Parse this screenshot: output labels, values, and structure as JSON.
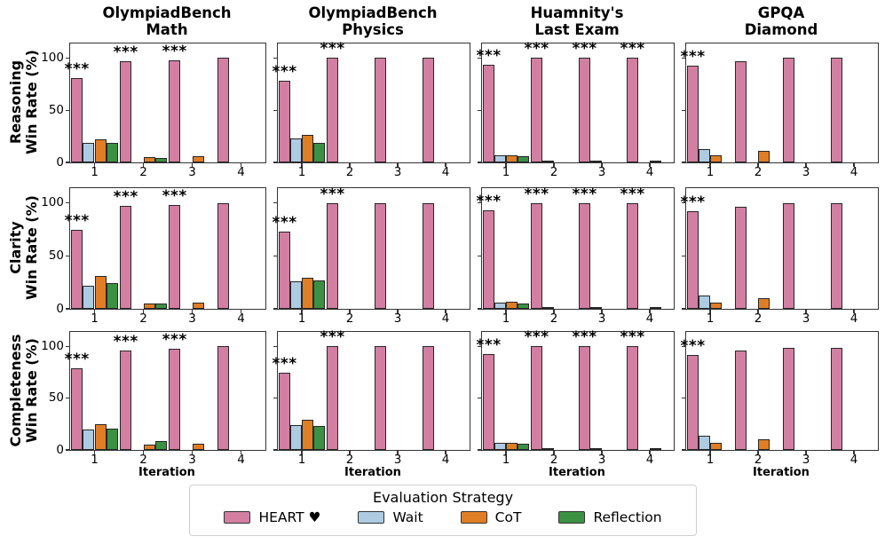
{
  "legend": {
    "title": "Evaluation Strategy",
    "entries": [
      {
        "label": "HEART ♥",
        "color": "#D27FA2"
      },
      {
        "label": "Wait",
        "color": "#AECBE1"
      },
      {
        "label": "CoT",
        "color": "#E07E26"
      },
      {
        "label": "Reflection",
        "color": "#3B9142"
      }
    ]
  },
  "chart_data": {
    "type": "bar",
    "columns": [
      {
        "title": "OlympiadBench\nMath"
      },
      {
        "title": "OlympiadBench\nPhysics"
      },
      {
        "title": "Huamnity's\nLast Exam"
      },
      {
        "title": "GPQA\nDiamond"
      }
    ],
    "rows": [
      {
        "label": "Reasoning\nWin Rate (%)"
      },
      {
        "label": "Clarity\nWin Rate (%)"
      },
      {
        "label": "Completeness\nWin Rate (%)"
      }
    ],
    "x_label": "Iteration",
    "x_ticks": [
      "1",
      "2",
      "3",
      "4"
    ],
    "y_ticks": [
      {
        "value": 0,
        "label": "0"
      },
      {
        "value": 50,
        "label": "50"
      },
      {
        "value": 100,
        "label": "100"
      }
    ],
    "ylim": [
      0,
      114
    ],
    "grid": false,
    "significance_marker": "***",
    "series_keys": [
      "HEART",
      "Wait",
      "CoT",
      "Reflection"
    ],
    "series": [
      {
        "key": "HEART",
        "name": "HEART ♥",
        "color": "#D27FA2"
      },
      {
        "key": "Wait",
        "name": "Wait",
        "color": "#AECBE1"
      },
      {
        "key": "CoT",
        "name": "CoT",
        "color": "#E07E26"
      },
      {
        "key": "Reflection",
        "name": "Reflection",
        "color": "#3B9142"
      }
    ],
    "panels": [
      {
        "row": 0,
        "col": 0,
        "dataset": "OlympiadBench Math",
        "metric": "Reasoning Win Rate (%)",
        "values": {
          "HEART": [
            81,
            97,
            98,
            100
          ],
          "Wait": [
            19,
            0,
            0,
            0
          ],
          "CoT": [
            22,
            5,
            6,
            0
          ],
          "Reflection": [
            19,
            4,
            0,
            0
          ]
        },
        "stars_at_iterations": [
          1,
          2,
          3
        ]
      },
      {
        "row": 0,
        "col": 1,
        "dataset": "OlympiadBench Physics",
        "metric": "Reasoning Win Rate (%)",
        "values": {
          "HEART": [
            78,
            100,
            100,
            100
          ],
          "Wait": [
            23,
            0,
            0,
            0
          ],
          "CoT": [
            26,
            0,
            0,
            0
          ],
          "Reflection": [
            19,
            0,
            0,
            0
          ]
        },
        "stars_at_iterations": [
          1,
          2
        ]
      },
      {
        "row": 0,
        "col": 2,
        "dataset": "Huamnity's Last Exam",
        "metric": "Reasoning Win Rate (%)",
        "values": {
          "HEART": [
            94,
            100,
            100,
            100
          ],
          "Wait": [
            7,
            1,
            2,
            0
          ],
          "CoT": [
            7,
            0,
            0,
            2
          ],
          "Reflection": [
            6,
            0,
            0,
            0
          ]
        },
        "stars_at_iterations": [
          1,
          2,
          3,
          4
        ]
      },
      {
        "row": 0,
        "col": 3,
        "dataset": "GPQA Diamond",
        "metric": "Reasoning Win Rate (%)",
        "values": {
          "HEART": [
            93,
            97,
            100,
            100
          ],
          "Wait": [
            13,
            0,
            0,
            0
          ],
          "CoT": [
            7,
            11,
            0,
            0
          ],
          "Reflection": [
            0,
            0,
            0,
            0
          ]
        },
        "stars_at_iterations": [
          1
        ]
      },
      {
        "row": 1,
        "col": 0,
        "dataset": "OlympiadBench Math",
        "metric": "Clarity Win Rate (%)",
        "values": {
          "HEART": [
            75,
            97,
            98,
            100
          ],
          "Wait": [
            22,
            0,
            0,
            0
          ],
          "CoT": [
            31,
            5,
            6,
            0
          ],
          "Reflection": [
            24,
            5,
            0,
            0
          ]
        },
        "stars_at_iterations": [
          1,
          2,
          3
        ]
      },
      {
        "row": 1,
        "col": 1,
        "dataset": "OlympiadBench Physics",
        "metric": "Clarity Win Rate (%)",
        "values": {
          "HEART": [
            73,
            100,
            100,
            100
          ],
          "Wait": [
            26,
            0,
            0,
            0
          ],
          "CoT": [
            29,
            0,
            0,
            0
          ],
          "Reflection": [
            27,
            0,
            0,
            0
          ]
        },
        "stars_at_iterations": [
          1,
          2
        ]
      },
      {
        "row": 1,
        "col": 2,
        "dataset": "Huamnity's Last Exam",
        "metric": "Clarity Win Rate (%)",
        "values": {
          "HEART": [
            93,
            100,
            100,
            100
          ],
          "Wait": [
            6,
            1,
            2,
            0
          ],
          "CoT": [
            7,
            0,
            0,
            1.5
          ],
          "Reflection": [
            5,
            0,
            0,
            0
          ]
        },
        "stars_at_iterations": [
          1,
          2,
          3,
          4
        ]
      },
      {
        "row": 1,
        "col": 3,
        "dataset": "GPQA Diamond",
        "metric": "Clarity Win Rate (%)",
        "values": {
          "HEART": [
            92,
            96,
            100,
            100
          ],
          "Wait": [
            13,
            0,
            0,
            0
          ],
          "CoT": [
            6,
            10,
            0,
            0
          ],
          "Reflection": [
            0,
            0,
            0,
            0
          ]
        },
        "stars_at_iterations": [
          1
        ]
      },
      {
        "row": 2,
        "col": 0,
        "dataset": "OlympiadBench Math",
        "metric": "Completeness Win Rate (%)",
        "values": {
          "HEART": [
            79,
            96,
            98,
            100
          ],
          "Wait": [
            20,
            0,
            0,
            0
          ],
          "CoT": [
            25,
            5,
            6,
            0
          ],
          "Reflection": [
            21,
            9,
            0,
            0
          ]
        },
        "stars_at_iterations": [
          1,
          2,
          3
        ]
      },
      {
        "row": 2,
        "col": 1,
        "dataset": "OlympiadBench Physics",
        "metric": "Completeness Win Rate (%)",
        "values": {
          "HEART": [
            75,
            100,
            100,
            100
          ],
          "Wait": [
            24,
            0,
            0,
            0
          ],
          "CoT": [
            29,
            0,
            0,
            0
          ],
          "Reflection": [
            23,
            0,
            0,
            0
          ]
        },
        "stars_at_iterations": [
          1,
          2
        ]
      },
      {
        "row": 2,
        "col": 2,
        "dataset": "Huamnity's Last Exam",
        "metric": "Completeness Win Rate (%)",
        "values": {
          "HEART": [
            93,
            100,
            100,
            100
          ],
          "Wait": [
            7,
            1,
            2,
            0
          ],
          "CoT": [
            7,
            0,
            0,
            1.5
          ],
          "Reflection": [
            6,
            0,
            0,
            0
          ]
        },
        "stars_at_iterations": [
          1,
          2,
          3,
          4
        ]
      },
      {
        "row": 2,
        "col": 3,
        "dataset": "GPQA Diamond",
        "metric": "Completeness Win Rate (%)",
        "values": {
          "HEART": [
            92,
            96,
            99,
            99
          ],
          "Wait": [
            14,
            0,
            0,
            0
          ],
          "CoT": [
            7,
            10,
            0,
            0
          ],
          "Reflection": [
            0,
            0,
            0,
            0
          ]
        },
        "stars_at_iterations": [
          1
        ]
      }
    ]
  }
}
